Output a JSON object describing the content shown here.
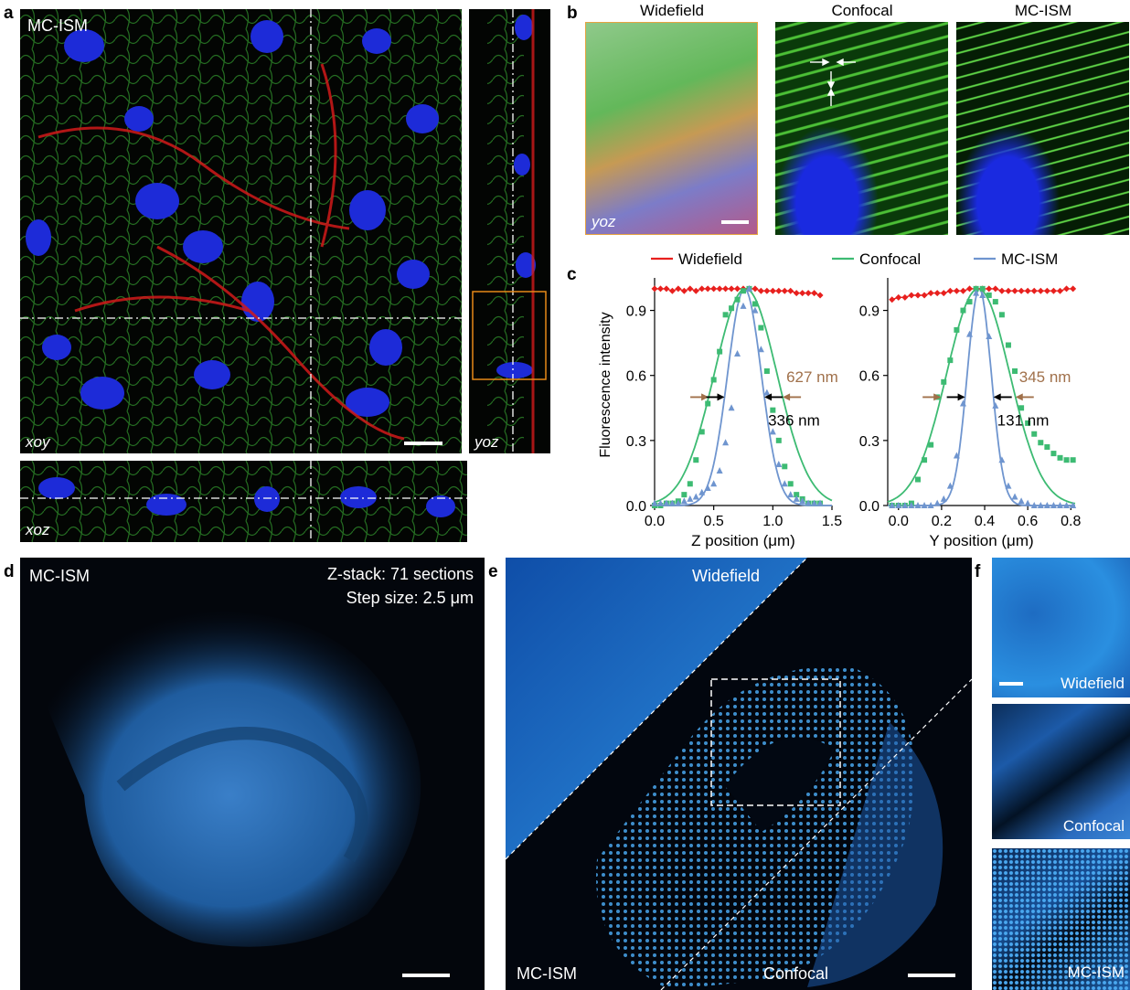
{
  "panels": {
    "a": {
      "label": "a",
      "title": "MC-ISM",
      "xoy_label": "xoy",
      "yoz_label": "yoz",
      "xoz_label": "xoz"
    },
    "b": {
      "label": "b",
      "headers": [
        "Widefield",
        "Confocal",
        "MC-ISM"
      ],
      "yoz_label": "yoz"
    },
    "c": {
      "label": "c",
      "legend": [
        {
          "name": "Widefield",
          "color": "#e8201e"
        },
        {
          "name": "Confocal",
          "color": "#3dbb73"
        },
        {
          "name": "MC-ISM",
          "color": "#6f95cf"
        }
      ],
      "ylabel": "Fluorescence intensity",
      "left": {
        "xlabel": "Z position (μm)",
        "fwhm_confocal": "627 nm",
        "fwhm_mcism": "336 nm"
      },
      "right": {
        "xlabel": "Y position (μm)",
        "fwhm_confocal": "345 nm",
        "fwhm_mcism": "131 nm"
      }
    },
    "d": {
      "label": "d",
      "title": "MC-ISM",
      "zstack": "Z-stack: 71 sections",
      "step": "Step size: 2.5 μm"
    },
    "e": {
      "label": "e",
      "widefield": "Widefield",
      "mcism": "MC-ISM",
      "confocal": "Confocal"
    },
    "f": {
      "label": "f",
      "widefield": "Widefield",
      "confocal": "Confocal",
      "mcism": "MC-ISM"
    }
  },
  "chart_data": [
    {
      "type": "line",
      "title": "",
      "xlabel": "Z position (μm)",
      "ylabel": "Fluorescence intensity",
      "xlim": [
        0,
        1.5
      ],
      "ylim": [
        0,
        1.05
      ],
      "xticks": [
        "0.0",
        "0.5",
        "1.0",
        "1.5"
      ],
      "yticks": [
        "0.0",
        "0.3",
        "0.6",
        "0.9"
      ],
      "series": [
        {
          "name": "Widefield",
          "color": "#e8201e",
          "marker": "diamond",
          "x": [
            0.0,
            0.05,
            0.1,
            0.15,
            0.2,
            0.25,
            0.3,
            0.35,
            0.4,
            0.45,
            0.5,
            0.55,
            0.6,
            0.65,
            0.7,
            0.75,
            0.8,
            0.85,
            0.9,
            0.95,
            1.0,
            1.05,
            1.1,
            1.15,
            1.2,
            1.25,
            1.3,
            1.35,
            1.4
          ],
          "y": [
            1.0,
            1.0,
            1.0,
            0.99,
            1.0,
            0.99,
            1.0,
            0.99,
            1.0,
            1.0,
            1.0,
            1.0,
            1.0,
            1.0,
            1.0,
            1.0,
            1.0,
            1.0,
            0.99,
            0.99,
            0.99,
            0.99,
            0.99,
            0.99,
            0.98,
            0.98,
            0.98,
            0.98,
            0.97
          ]
        },
        {
          "name": "Confocal",
          "color": "#3dbb73",
          "marker": "square",
          "x": [
            0.0,
            0.05,
            0.1,
            0.15,
            0.2,
            0.25,
            0.3,
            0.35,
            0.4,
            0.45,
            0.5,
            0.55,
            0.6,
            0.65,
            0.7,
            0.75,
            0.8,
            0.85,
            0.9,
            0.95,
            1.0,
            1.05,
            1.1,
            1.15,
            1.2,
            1.25,
            1.3,
            1.35,
            1.4
          ],
          "y": [
            0.0,
            0.0,
            0.01,
            0.01,
            0.02,
            0.05,
            0.1,
            0.21,
            0.34,
            0.47,
            0.58,
            0.71,
            0.88,
            0.91,
            0.95,
            0.99,
            1.0,
            0.93,
            0.82,
            0.62,
            0.44,
            0.3,
            0.18,
            0.1,
            0.05,
            0.03,
            0.01,
            0.01,
            0.01
          ]
        },
        {
          "name": "MC-ISM",
          "color": "#6f95cf",
          "marker": "triangle",
          "x": [
            0.0,
            0.05,
            0.1,
            0.15,
            0.2,
            0.25,
            0.3,
            0.35,
            0.4,
            0.45,
            0.5,
            0.55,
            0.6,
            0.65,
            0.7,
            0.75,
            0.8,
            0.85,
            0.9,
            0.95,
            1.0,
            1.05,
            1.1,
            1.15,
            1.2,
            1.25,
            1.3,
            1.35,
            1.4
          ],
          "y": [
            0.01,
            0.01,
            0.01,
            0.01,
            0.01,
            0.02,
            0.03,
            0.04,
            0.06,
            0.08,
            0.1,
            0.16,
            0.29,
            0.45,
            0.7,
            0.92,
            1.0,
            0.9,
            0.72,
            0.52,
            0.34,
            0.19,
            0.1,
            0.05,
            0.03,
            0.02,
            0.01,
            0.01,
            0.01
          ]
        }
      ],
      "annotations": [
        "627 nm",
        "336 nm"
      ]
    },
    {
      "type": "line",
      "title": "",
      "xlabel": "Y position (μm)",
      "ylabel": "Fluorescence intensity",
      "xlim": [
        -0.05,
        0.82
      ],
      "ylim": [
        0,
        1.05
      ],
      "xticks": [
        "0.0",
        "0.2",
        "0.4",
        "0.6",
        "0.8"
      ],
      "yticks": [
        "0.0",
        "0.3",
        "0.6",
        "0.9"
      ],
      "series": [
        {
          "name": "Widefield",
          "color": "#e8201e",
          "marker": "diamond",
          "x": [
            -0.03,
            0.0,
            0.03,
            0.06,
            0.09,
            0.12,
            0.15,
            0.18,
            0.21,
            0.24,
            0.27,
            0.3,
            0.33,
            0.36,
            0.39,
            0.42,
            0.45,
            0.48,
            0.51,
            0.54,
            0.57,
            0.6,
            0.63,
            0.66,
            0.69,
            0.72,
            0.75,
            0.78,
            0.81
          ],
          "y": [
            0.95,
            0.96,
            0.96,
            0.97,
            0.97,
            0.97,
            0.98,
            0.98,
            0.98,
            0.99,
            0.99,
            0.99,
            1.0,
            1.0,
            1.0,
            1.0,
            1.0,
            0.99,
            0.99,
            0.99,
            0.99,
            0.99,
            0.99,
            0.99,
            0.99,
            0.99,
            0.99,
            1.0,
            1.0
          ]
        },
        {
          "name": "Confocal",
          "color": "#3dbb73",
          "marker": "square",
          "x": [
            -0.03,
            0.0,
            0.03,
            0.06,
            0.09,
            0.12,
            0.15,
            0.18,
            0.21,
            0.24,
            0.27,
            0.3,
            0.33,
            0.36,
            0.39,
            0.42,
            0.45,
            0.48,
            0.51,
            0.54,
            0.57,
            0.6,
            0.63,
            0.66,
            0.69,
            0.72,
            0.75,
            0.78,
            0.81
          ],
          "y": [
            0.0,
            0.0,
            0.0,
            0.01,
            0.12,
            0.21,
            0.28,
            0.5,
            0.57,
            0.67,
            0.81,
            0.9,
            0.94,
            1.0,
            1.0,
            0.97,
            0.94,
            0.88,
            0.74,
            0.62,
            0.45,
            0.38,
            0.33,
            0.29,
            0.27,
            0.24,
            0.22,
            0.21,
            0.21
          ]
        },
        {
          "name": "MC-ISM",
          "color": "#6f95cf",
          "marker": "triangle",
          "x": [
            -0.03,
            0.0,
            0.03,
            0.06,
            0.09,
            0.12,
            0.15,
            0.18,
            0.21,
            0.24,
            0.27,
            0.3,
            0.33,
            0.36,
            0.39,
            0.42,
            0.45,
            0.48,
            0.51,
            0.54,
            0.57,
            0.6,
            0.63,
            0.66,
            0.69,
            0.72,
            0.75,
            0.78,
            0.81
          ],
          "y": [
            0.0,
            0.0,
            0.0,
            0.0,
            0.0,
            0.0,
            0.0,
            0.01,
            0.03,
            0.09,
            0.23,
            0.47,
            0.79,
            0.98,
            0.97,
            0.78,
            0.46,
            0.21,
            0.09,
            0.04,
            0.02,
            0.01,
            0.0,
            0.0,
            0.0,
            0.0,
            0.0,
            0.0,
            0.0
          ]
        }
      ],
      "annotations": [
        "345 nm",
        "131 nm"
      ]
    }
  ]
}
